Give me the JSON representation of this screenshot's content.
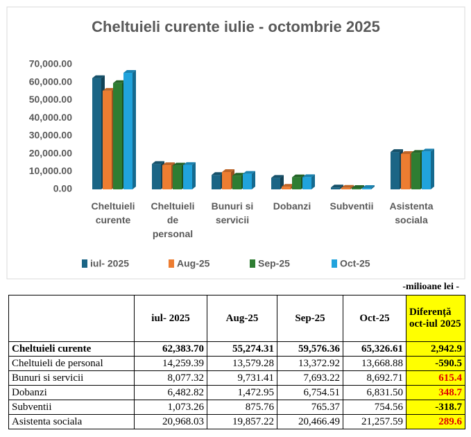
{
  "chart_data": {
    "type": "bar3d",
    "title": "Cheltuieli curente iulie - octombrie 2025",
    "categories": [
      "Cheltuieli curente",
      "Cheltuieli de personal",
      "Bunuri si servicii",
      "Dobanzi",
      "Subventii",
      "Asistenta sociala"
    ],
    "series": [
      {
        "name": "iul- 2025",
        "color": "#1b6585",
        "values": [
          62383.7,
          14259.39,
          8077.32,
          6482.82,
          1073.26,
          20968.03
        ]
      },
      {
        "name": "Aug-25",
        "color": "#ed7d31",
        "values": [
          55274.31,
          13579.28,
          9731.41,
          1472.95,
          875.76,
          19857.22
        ]
      },
      {
        "name": "Sep-25",
        "color": "#2e7d32",
        "values": [
          59576.36,
          13372.92,
          7693.22,
          6754.51,
          765.37,
          20466.49
        ]
      },
      {
        "name": "Oct-25",
        "color": "#21a3dc",
        "values": [
          65326.61,
          13668.88,
          8692.71,
          6831.5,
          754.56,
          21257.59
        ]
      }
    ],
    "ylim": [
      0,
      70000
    ],
    "yticks": [
      {
        "value": 0,
        "label": "0.00"
      },
      {
        "value": 10000,
        "label": "10,000.00"
      },
      {
        "value": 20000,
        "label": "20,000.00"
      },
      {
        "value": 30000,
        "label": "30,000.00"
      },
      {
        "value": 40000,
        "label": "40,000.00"
      },
      {
        "value": 50000,
        "label": "50,000.00"
      },
      {
        "value": 60000,
        "label": "60,000.00"
      },
      {
        "value": 70000,
        "label": "70,000.00"
      }
    ],
    "grid": false,
    "legend": "bottom"
  },
  "table": {
    "note": "-milioane lei -",
    "header": [
      "iul- 2025",
      "Aug-25",
      "Sep-25",
      "Oct-25",
      "Diferență oct-iul 2025"
    ],
    "rows": [
      [
        "Cheltuieli curente",
        "62,383.70",
        "55,274.31",
        "59,576.36",
        "65,326.61",
        "2,942.9"
      ],
      [
        "Cheltuieli de personal",
        "14,259.39",
        "13,579.28",
        "13,372.92",
        "13,668.88",
        "-590.5"
      ],
      [
        "Bunuri si servicii",
        "8,077.32",
        "9,731.41",
        "7,693.22",
        "8,692.71",
        "615.4"
      ],
      [
        "Dobanzi",
        "6,482.82",
        "1,472.95",
        "6,754.51",
        "6,831.50",
        "348.7"
      ],
      [
        "Subventii",
        "1,073.26",
        "875.76",
        "765.37",
        "754.56",
        "-318.7"
      ],
      [
        "Asistenta sociala",
        "20,968.03",
        "19,857.22",
        "20,466.49",
        "21,257.59",
        "289.6"
      ]
    ]
  }
}
